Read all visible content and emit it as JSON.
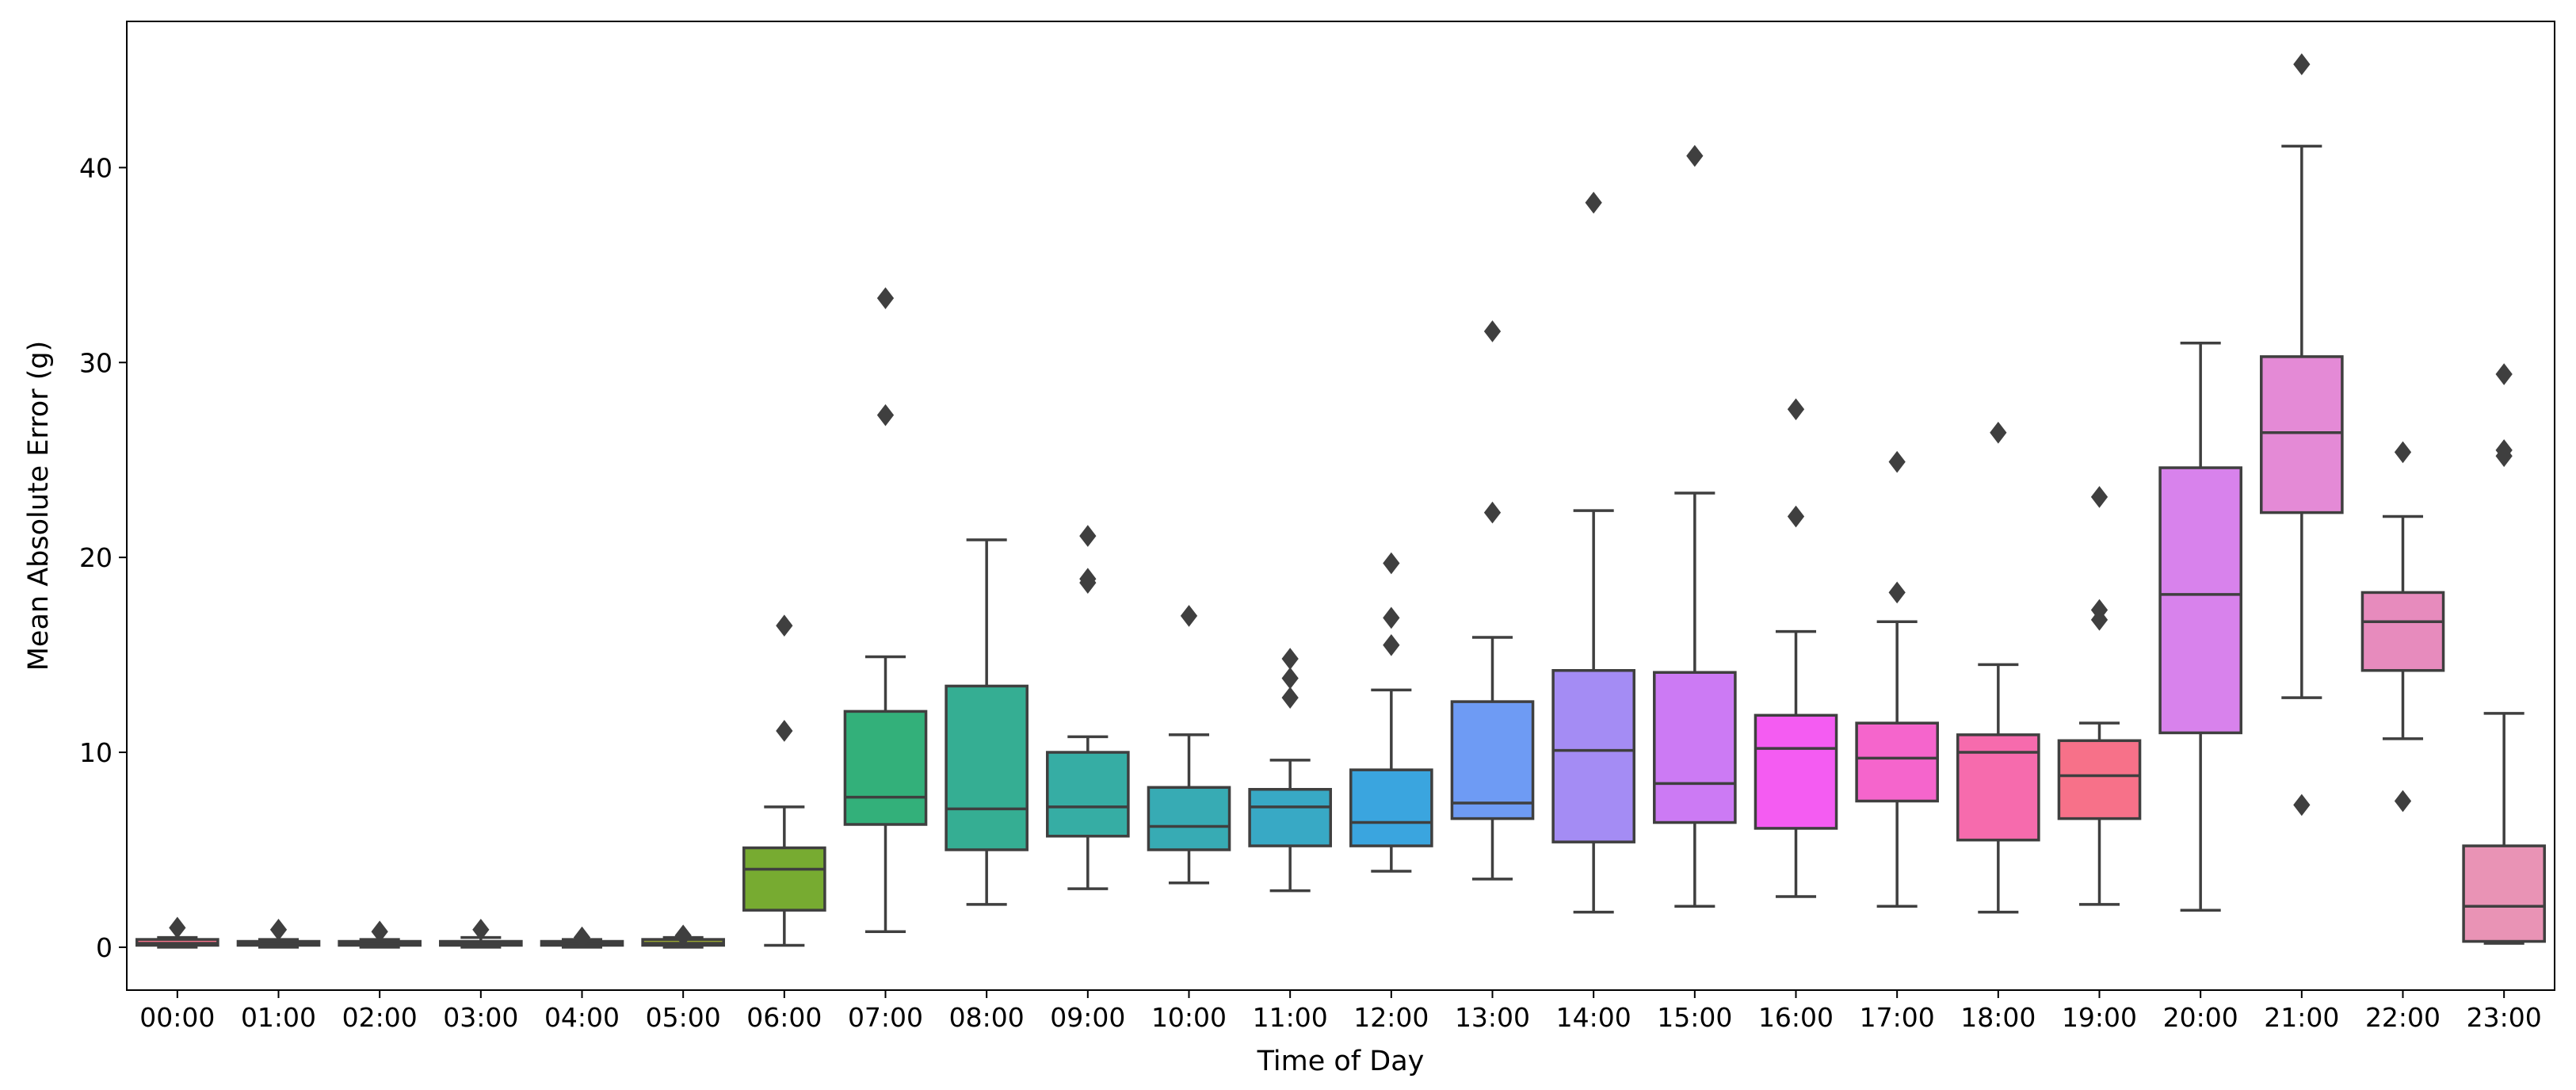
{
  "chart_data": {
    "type": "box",
    "title": "",
    "xlabel": "Time of Day",
    "ylabel": "Mean Absolute Error (g)",
    "ylim": [
      -2.2,
      47.5
    ],
    "yticks": [
      0,
      10,
      20,
      30,
      40
    ],
    "ytick_labels": [
      "0",
      "10",
      "20",
      "30",
      "40"
    ],
    "grid": false,
    "categories": [
      "00:00",
      "01:00",
      "02:00",
      "03:00",
      "04:00",
      "05:00",
      "06:00",
      "07:00",
      "08:00",
      "09:00",
      "10:00",
      "11:00",
      "12:00",
      "13:00",
      "14:00",
      "15:00",
      "16:00",
      "17:00",
      "18:00",
      "19:00",
      "20:00",
      "21:00",
      "22:00",
      "23:00"
    ],
    "colors": [
      "#f77189",
      "#f7754f",
      "#dc8932",
      "#c39532",
      "#ae9d31",
      "#97a431",
      "#77ab31",
      "#33b07a",
      "#35ae93",
      "#36ada4",
      "#37abb4",
      "#38a9c5",
      "#3aa5df",
      "#6e9bf4",
      "#a48cf4",
      "#cc7af4",
      "#f45cf2",
      "#f565cc",
      "#f66bad",
      "#f77189",
      "#d882ec",
      "#e48ad6",
      "#e78bbd",
      "#e993b5"
    ],
    "boxes": [
      {
        "whislo": 0.0,
        "q1": 0.1,
        "med": 0.2,
        "q3": 0.4,
        "whishi": 0.5,
        "fliers": [
          1.0
        ]
      },
      {
        "whislo": 0.0,
        "q1": 0.1,
        "med": 0.2,
        "q3": 0.3,
        "whishi": 0.4,
        "fliers": [
          0.9
        ]
      },
      {
        "whislo": 0.0,
        "q1": 0.1,
        "med": 0.2,
        "q3": 0.3,
        "whishi": 0.4,
        "fliers": [
          0.8
        ]
      },
      {
        "whislo": 0.0,
        "q1": 0.1,
        "med": 0.2,
        "q3": 0.3,
        "whishi": 0.5,
        "fliers": [
          0.9
        ]
      },
      {
        "whislo": 0.0,
        "q1": 0.1,
        "med": 0.2,
        "q3": 0.3,
        "whishi": 0.4,
        "fliers": [
          0.5
        ]
      },
      {
        "whislo": 0.0,
        "q1": 0.1,
        "med": 0.2,
        "q3": 0.4,
        "whishi": 0.5,
        "fliers": [
          0.6
        ]
      },
      {
        "whislo": 0.1,
        "q1": 1.9,
        "med": 4.0,
        "q3": 5.1,
        "whishi": 7.2,
        "fliers": [
          11.1,
          16.5
        ]
      },
      {
        "whislo": 0.8,
        "q1": 6.3,
        "med": 7.7,
        "q3": 12.1,
        "whishi": 14.9,
        "fliers": [
          27.3,
          33.3
        ]
      },
      {
        "whislo": 2.2,
        "q1": 5.0,
        "med": 7.1,
        "q3": 13.4,
        "whishi": 20.9,
        "fliers": []
      },
      {
        "whislo": 3.0,
        "q1": 5.7,
        "med": 7.2,
        "q3": 10.0,
        "whishi": 10.8,
        "fliers": [
          18.7,
          18.9,
          21.1
        ]
      },
      {
        "whislo": 3.3,
        "q1": 5.0,
        "med": 6.2,
        "q3": 8.2,
        "whishi": 10.9,
        "fliers": [
          17.0
        ]
      },
      {
        "whislo": 2.9,
        "q1": 5.2,
        "med": 7.2,
        "q3": 8.1,
        "whishi": 9.6,
        "fliers": [
          12.8,
          13.8,
          14.8
        ]
      },
      {
        "whislo": 3.9,
        "q1": 5.2,
        "med": 6.4,
        "q3": 9.1,
        "whishi": 13.2,
        "fliers": [
          15.5,
          16.9,
          19.7
        ]
      },
      {
        "whislo": 3.5,
        "q1": 6.6,
        "med": 7.4,
        "q3": 12.6,
        "whishi": 15.9,
        "fliers": [
          22.3,
          31.6
        ]
      },
      {
        "whislo": 1.8,
        "q1": 5.4,
        "med": 10.1,
        "q3": 14.2,
        "whishi": 22.4,
        "fliers": [
          38.2
        ]
      },
      {
        "whislo": 2.1,
        "q1": 6.4,
        "med": 8.4,
        "q3": 14.1,
        "whishi": 23.3,
        "fliers": [
          40.6
        ]
      },
      {
        "whislo": 2.6,
        "q1": 6.1,
        "med": 10.2,
        "q3": 11.9,
        "whishi": 16.2,
        "fliers": [
          22.1,
          27.6
        ]
      },
      {
        "whislo": 2.1,
        "q1": 7.5,
        "med": 9.7,
        "q3": 11.5,
        "whishi": 16.7,
        "fliers": [
          18.2,
          24.9
        ]
      },
      {
        "whislo": 1.8,
        "q1": 5.5,
        "med": 10.0,
        "q3": 10.9,
        "whishi": 14.5,
        "fliers": [
          26.4
        ]
      },
      {
        "whislo": 2.2,
        "q1": 6.6,
        "med": 8.8,
        "q3": 10.6,
        "whishi": 11.5,
        "fliers": [
          16.8,
          17.3,
          23.1
        ]
      },
      {
        "whislo": 1.9,
        "q1": 11.0,
        "med": 18.1,
        "q3": 24.6,
        "whishi": 31.0,
        "fliers": []
      },
      {
        "whislo": 12.8,
        "q1": 22.3,
        "med": 26.4,
        "q3": 30.3,
        "whishi": 41.1,
        "fliers": [
          7.3,
          45.3
        ]
      },
      {
        "whislo": 10.7,
        "q1": 14.2,
        "med": 16.7,
        "q3": 18.2,
        "whishi": 22.1,
        "fliers": [
          7.5,
          25.4
        ]
      },
      {
        "whislo": 0.2,
        "q1": 0.3,
        "med": 2.1,
        "q3": 5.2,
        "whishi": 12.0,
        "fliers": [
          25.2,
          25.5,
          29.4
        ]
      }
    ]
  }
}
